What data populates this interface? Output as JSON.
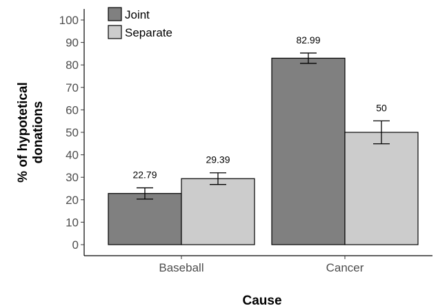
{
  "chart_data": {
    "type": "bar",
    "categories": [
      "Baseball",
      "Cancer"
    ],
    "series": [
      {
        "name": "Joint",
        "values": [
          22.79,
          82.99
        ],
        "errors": [
          2.5,
          2.3
        ],
        "color": "#808080"
      },
      {
        "name": "Separate",
        "values": [
          29.39,
          50
        ],
        "errors": [
          2.6,
          5.1
        ],
        "color": "#cccccc"
      }
    ],
    "data_labels": [
      [
        "22.79",
        "82.99"
      ],
      [
        "29.39",
        "50"
      ]
    ],
    "title": "",
    "xlabel": "Cause",
    "ylabel_lines": [
      "% of hypotetical",
      "donations"
    ],
    "ylim": [
      0,
      100
    ],
    "yticks": [
      0,
      10,
      20,
      30,
      40,
      50,
      60,
      70,
      80,
      90,
      100
    ],
    "legend_position": "top-left",
    "grid": false,
    "error_bars": true
  }
}
